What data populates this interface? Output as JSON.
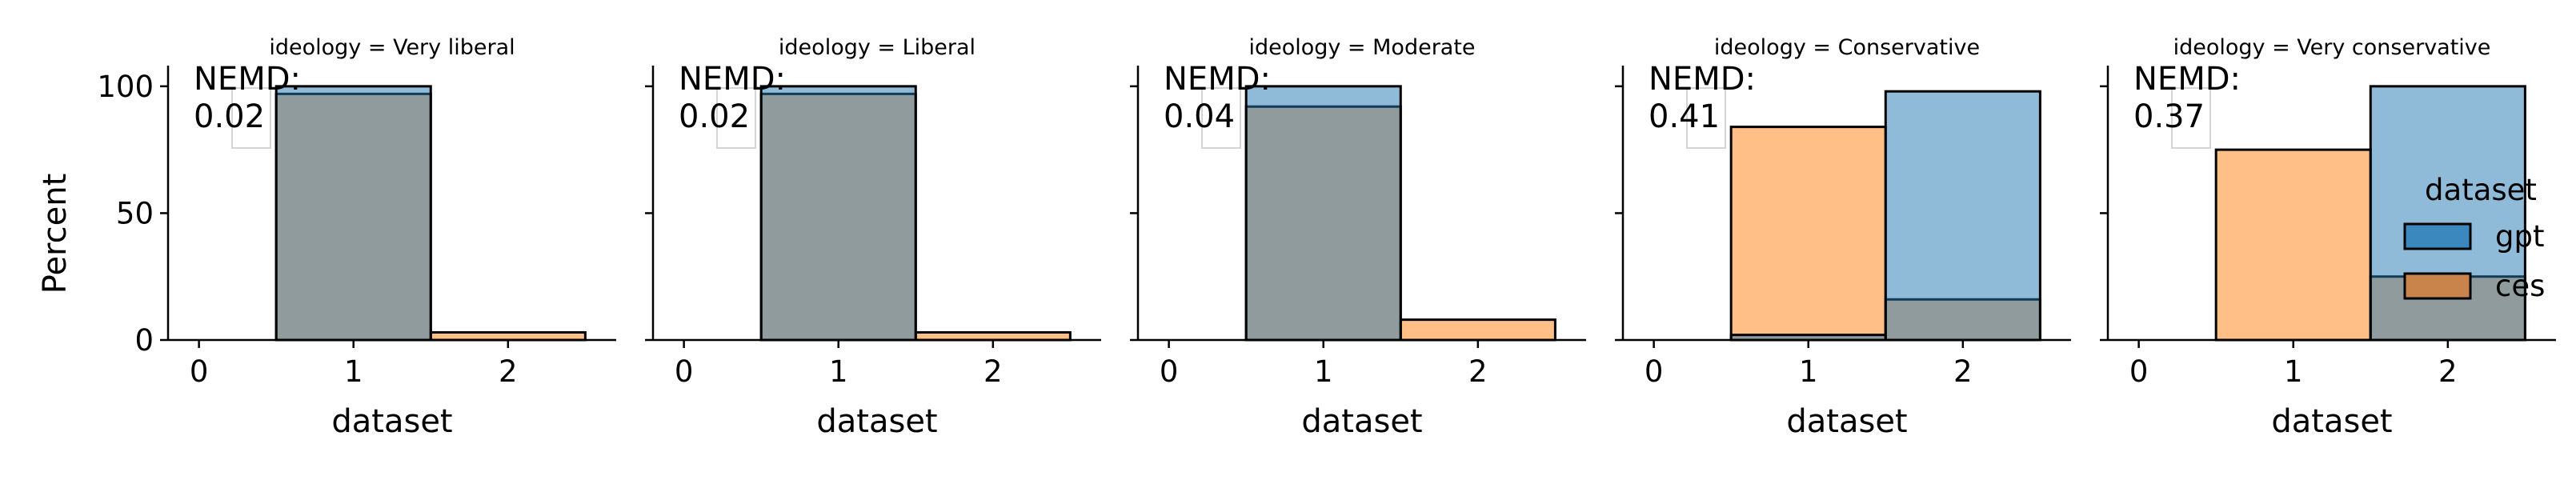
{
  "chart_data": {
    "type": "bar",
    "subtype": "overlaid-histogram-facets",
    "ylabel": "Percent",
    "xlabel": "dataset",
    "x_ticks": [
      "0",
      "1",
      "2"
    ],
    "y_ticks": [
      "0",
      "50",
      "100"
    ],
    "xlim": [
      -0.2,
      2.7
    ],
    "ylim": [
      0,
      105
    ],
    "legend": {
      "title": "dataset",
      "position": "right",
      "entries": [
        {
          "name": "gpt",
          "color": "#1f77b4"
        },
        {
          "name": "ces",
          "color": "#ff7f0e"
        }
      ]
    },
    "series_colors": {
      "gpt": "#1f77b4",
      "ces": "#ff7f0e"
    },
    "panels": [
      {
        "title": "ideology = Very liberal",
        "nemd_label": "NEMD:",
        "nemd_value": "0.02",
        "bins": [
          0,
          1,
          2
        ],
        "gpt": [
          0,
          100,
          0
        ],
        "ces": [
          0,
          97,
          3
        ]
      },
      {
        "title": "ideology = Liberal",
        "nemd_label": "NEMD:",
        "nemd_value": "0.02",
        "bins": [
          0,
          1,
          2
        ],
        "gpt": [
          0,
          100,
          0
        ],
        "ces": [
          0,
          97,
          3
        ]
      },
      {
        "title": "ideology = Moderate",
        "nemd_label": "NEMD:",
        "nemd_value": "0.04",
        "bins": [
          0,
          1,
          2
        ],
        "gpt": [
          0,
          100,
          0
        ],
        "ces": [
          0,
          92,
          8
        ]
      },
      {
        "title": "ideology = Conservative",
        "nemd_label": "NEMD:",
        "nemd_value": "0.41",
        "bins": [
          0,
          1,
          2
        ],
        "gpt": [
          0,
          2,
          98
        ],
        "ces": [
          0,
          84,
          16
        ]
      },
      {
        "title": "ideology = Very conservative",
        "nemd_label": "NEMD:",
        "nemd_value": "0.37",
        "bins": [
          0,
          1,
          2
        ],
        "gpt": [
          0,
          0,
          100
        ],
        "ces": [
          0,
          75,
          25
        ]
      }
    ]
  }
}
